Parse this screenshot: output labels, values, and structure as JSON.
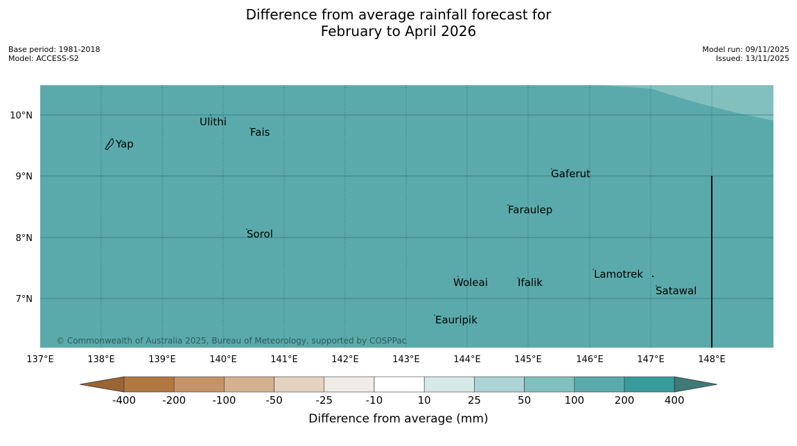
{
  "title": {
    "line1": "Difference from average rainfall forecast for",
    "line2": "February to April 2026"
  },
  "meta_left": {
    "base_period": "Base period: 1981-2018",
    "model": "Model: ACCESS-S2"
  },
  "meta_right": {
    "model_run": "Model run: 09/11/2025",
    "issued": "Issued: 13/11/2025"
  },
  "map": {
    "lat_labels": [
      "10°N",
      "9°N",
      "8°N",
      "7°N"
    ],
    "lon_labels": [
      "137°E",
      "138°E",
      "139°E",
      "140°E",
      "141°E",
      "142°E",
      "143°E",
      "144°E",
      "145°E",
      "146°E",
      "147°E",
      "148°E"
    ],
    "copyright": "© Commonwealth of Australia 2025, Bureau of Meteorology, supported by COSPPac",
    "fill_color": "#5baaab",
    "corner_color": "#82bfbf",
    "places": {
      "yap": "Yap",
      "ulithi": "Ulithi",
      "fais": "Fais",
      "sorol": "Sorol",
      "gaferut": "Gaferut",
      "faraulep": "Faraulep",
      "lamotrek": "Lamotrek",
      "satawal": "Satawal",
      "woleai": "Woleai",
      "ifalik": "Ifalik",
      "eauripik": "Eauripik"
    }
  },
  "colorbar": {
    "ticks": [
      "-400",
      "-200",
      "-100",
      "-50",
      "-25",
      "-10",
      "10",
      "25",
      "50",
      "100",
      "200",
      "400"
    ],
    "colors": [
      "#9a6433",
      "#b07840",
      "#c49468",
      "#d6b190",
      "#e5d1bf",
      "#efebe6",
      "#ffffff",
      "#d6e9e9",
      "#acd4d4",
      "#82bfbf",
      "#5baaab",
      "#389b9b",
      "#3e7a78"
    ],
    "label": "Difference from average (mm)"
  }
}
